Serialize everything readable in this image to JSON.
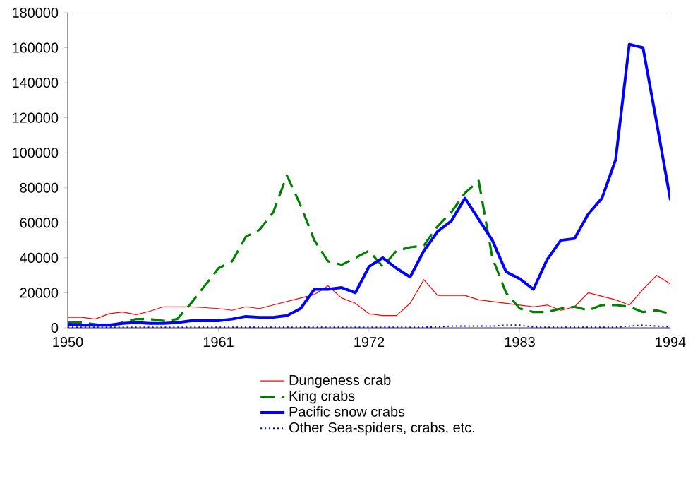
{
  "chart_data": {
    "type": "line",
    "x": [
      1950,
      1951,
      1952,
      1953,
      1954,
      1955,
      1956,
      1957,
      1958,
      1959,
      1960,
      1961,
      1962,
      1963,
      1964,
      1965,
      1966,
      1967,
      1968,
      1969,
      1970,
      1971,
      1972,
      1973,
      1974,
      1975,
      1976,
      1977,
      1978,
      1979,
      1980,
      1981,
      1982,
      1983,
      1984,
      1985,
      1986,
      1987,
      1988,
      1989,
      1990,
      1991,
      1992,
      1993,
      1994
    ],
    "series": [
      {
        "name": "Dungeness crab",
        "color": "#ff0000",
        "line_style": "solid",
        "values": [
          6000,
          6000,
          5000,
          8000,
          9000,
          7500,
          9500,
          12000,
          12000,
          12000,
          11500,
          11000,
          10000,
          12000,
          11000,
          13000,
          15000,
          17000,
          19000,
          24000,
          17000,
          14000,
          8000,
          7000,
          7000,
          14000,
          27500,
          18500,
          18500,
          18500,
          16000,
          15000,
          14000,
          13000,
          12000,
          13000,
          10000,
          12000,
          20000,
          18000,
          16000,
          13000,
          22000,
          30000,
          25000
        ]
      },
      {
        "name": "King crabs",
        "color": "#008000",
        "line_style": "dashed",
        "values": [
          3000,
          3000,
          2000,
          1000,
          3000,
          5000,
          5000,
          4000,
          5000,
          14000,
          24000,
          34000,
          38000,
          52000,
          56000,
          66000,
          87000,
          70000,
          50000,
          38000,
          36000,
          40000,
          44000,
          35000,
          44000,
          46000,
          47000,
          58000,
          66000,
          77000,
          84000,
          40000,
          20000,
          11000,
          9000,
          9000,
          11000,
          12000,
          10000,
          13000,
          13000,
          12000,
          9000,
          10000,
          8000
        ]
      },
      {
        "name": "Pacific snow crabs",
        "color": "#0000ff",
        "line_style": "solid",
        "values": [
          2000,
          1500,
          1500,
          1500,
          2500,
          3000,
          2500,
          2500,
          3000,
          4000,
          4000,
          4000,
          5000,
          6500,
          6000,
          6000,
          7000,
          11000,
          22000,
          22000,
          23000,
          20000,
          35000,
          40000,
          34000,
          29000,
          44000,
          55000,
          61000,
          74000,
          62000,
          50000,
          32000,
          28000,
          22000,
          39000,
          50000,
          51000,
          65000,
          74000,
          96000,
          162000,
          160000,
          117000,
          73000
        ]
      },
      {
        "name": "Other Sea-spiders, crabs, etc.",
        "color": "#0000ff",
        "line_style": "dotted",
        "values": [
          300,
          300,
          300,
          300,
          300,
          300,
          300,
          300,
          300,
          300,
          300,
          300,
          300,
          300,
          300,
          300,
          300,
          300,
          300,
          300,
          300,
          300,
          300,
          300,
          300,
          300,
          300,
          500,
          1000,
          1000,
          1000,
          1000,
          1500,
          1500,
          500,
          300,
          300,
          300,
          300,
          300,
          300,
          1000,
          1500,
          1000,
          500
        ]
      }
    ],
    "xlim": [
      1950,
      1994
    ],
    "xticks": [
      1950,
      1961,
      1972,
      1983,
      1994
    ],
    "ylim": [
      0,
      180000
    ],
    "yticks": [
      0,
      20000,
      40000,
      60000,
      80000,
      100000,
      120000,
      140000,
      160000,
      180000
    ],
    "legend": "bottom",
    "grid": false
  }
}
